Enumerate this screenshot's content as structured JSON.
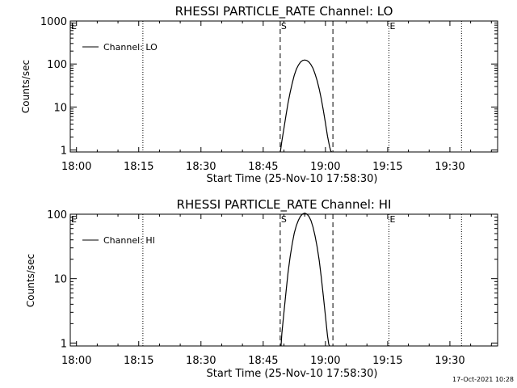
{
  "footer": {
    "timestamp": "17-Oct-2021 10:28"
  },
  "chart_data": [
    {
      "type": "line",
      "title": "RHESSI PARTICLE_RATE Channel: LO",
      "xlabel": "Start Time (25-Nov-10 17:58:30)",
      "ylabel": "Counts/sec",
      "yscale": "log",
      "xlim_min_from_start": [
        0,
        103
      ],
      "ylim": [
        0.9,
        1000
      ],
      "x_ticks": [
        {
          "label": "18:00",
          "t": 1.5
        },
        {
          "label": "18:15",
          "t": 16.5
        },
        {
          "label": "18:30",
          "t": 31.5
        },
        {
          "label": "18:45",
          "t": 46.5
        },
        {
          "label": "19:00",
          "t": 61.5
        },
        {
          "label": "19:15",
          "t": 76.5
        },
        {
          "label": "19:30",
          "t": 91.5
        }
      ],
      "y_ticks": [
        {
          "label": "1",
          "v": 1
        },
        {
          "label": "10",
          "v": 10
        },
        {
          "label": "100",
          "v": 100
        },
        {
          "label": "1000",
          "v": 1000
        }
      ],
      "legend": "Channel: LO",
      "markers": [
        {
          "label": "E",
          "t": 0.0,
          "style": "dotted"
        },
        {
          "label": "",
          "t": 17.5,
          "style": "dotted"
        },
        {
          "label": "S",
          "t": 50.6,
          "style": "dashed"
        },
        {
          "label": "",
          "t": 63.3,
          "style": "dashed"
        },
        {
          "label": "E",
          "t": 76.8,
          "style": "dotted"
        },
        {
          "label": "",
          "t": 94.3,
          "style": "dotted"
        }
      ],
      "series": [
        {
          "name": "Channel: LO",
          "x": [
            50.6,
            50.7,
            51.0,
            51.5,
            52.0,
            52.5,
            53.0,
            53.5,
            54.0,
            54.5,
            55.0,
            55.5,
            56.0,
            56.5,
            57.0,
            57.5,
            58.0,
            58.5,
            59.0,
            59.5,
            60.0,
            60.5,
            61.0,
            61.5,
            62.0,
            62.5,
            62.8,
            63.0
          ],
          "y": [
            0.9,
            1.0,
            1.6,
            3.2,
            6.5,
            12.5,
            22,
            36,
            55,
            76,
            95,
            111,
            121,
            124,
            121,
            112,
            97,
            79,
            59,
            41,
            26,
            15.5,
            8.3,
            4.2,
            2.1,
            1.2,
            0.95,
            0.9
          ]
        }
      ]
    },
    {
      "type": "line",
      "title": "RHESSI PARTICLE_RATE Channel: HI",
      "xlabel": "Start Time (25-Nov-10 17:58:30)",
      "ylabel": "Counts/sec",
      "yscale": "log",
      "xlim_min_from_start": [
        0,
        103
      ],
      "ylim": [
        0.9,
        100
      ],
      "x_ticks": [
        {
          "label": "18:00",
          "t": 1.5
        },
        {
          "label": "18:15",
          "t": 16.5
        },
        {
          "label": "18:30",
          "t": 31.5
        },
        {
          "label": "18:45",
          "t": 46.5
        },
        {
          "label": "19:00",
          "t": 61.5
        },
        {
          "label": "19:15",
          "t": 76.5
        },
        {
          "label": "19:30",
          "t": 91.5
        }
      ],
      "y_ticks": [
        {
          "label": "1",
          "v": 1
        },
        {
          "label": "10",
          "v": 10
        },
        {
          "label": "100",
          "v": 100
        }
      ],
      "legend": "Channel: HI",
      "markers": [
        {
          "label": "E",
          "t": 0.0,
          "style": "dotted"
        },
        {
          "label": "",
          "t": 17.5,
          "style": "dotted"
        },
        {
          "label": "S",
          "t": 50.6,
          "style": "dashed"
        },
        {
          "label": "",
          "t": 63.3,
          "style": "dashed"
        },
        {
          "label": "E",
          "t": 76.8,
          "style": "dotted"
        },
        {
          "label": "",
          "t": 94.3,
          "style": "dotted"
        }
      ],
      "series": [
        {
          "name": "Channel: HI",
          "x": [
            50.8,
            51.0,
            51.5,
            52.0,
            52.5,
            53.0,
            53.5,
            54.0,
            54.5,
            55.0,
            55.5,
            56.0,
            56.5,
            57.0,
            57.5,
            58.0,
            58.5,
            59.0,
            59.5,
            60.0,
            60.5,
            61.0,
            61.5,
            62.0,
            62.3,
            62.5
          ],
          "y": [
            0.9,
            1.4,
            3.0,
            6.3,
            12.5,
            22,
            35,
            51,
            67,
            81,
            93,
            101,
            104,
            101,
            93,
            80,
            63,
            46,
            31,
            19,
            10.5,
            5.3,
            2.6,
            1.3,
            0.95,
            0.9
          ]
        }
      ]
    }
  ]
}
